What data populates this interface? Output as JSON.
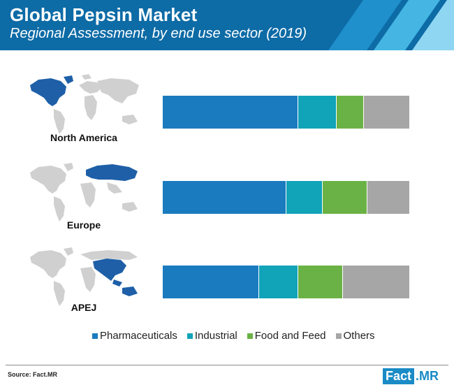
{
  "header": {
    "title": "Global Pepsin Market",
    "subtitle": "Regional Assessment, by end use sector (2019)",
    "bg_color": "#0d6ba6",
    "accent_colors": [
      "#1f90cc",
      "#45b6e3",
      "#8fd6f2"
    ]
  },
  "chart_data": {
    "type": "bar",
    "orientation": "horizontal-stacked-100",
    "title": "",
    "xlabel": "",
    "ylabel": "",
    "categories": [
      "North America",
      "Europe",
      "APEJ"
    ],
    "series": [
      {
        "name": "Pharmaceuticals",
        "color": "#1b7bbf",
        "values": [
          55,
          50,
          39
        ]
      },
      {
        "name": "Industrial",
        "color": "#11a3b8",
        "values": [
          15.5,
          15,
          16
        ]
      },
      {
        "name": "Food and Feed",
        "color": "#6ab245",
        "values": [
          11,
          18,
          18
        ]
      },
      {
        "name": "Others",
        "color": "#a6a6a6",
        "values": [
          18.5,
          17,
          27
        ]
      }
    ],
    "ylim": [
      0,
      100
    ],
    "grid": false,
    "legend_position": "bottom"
  },
  "regions": [
    {
      "label": "North America",
      "map_icon": "world-map-north-america-highlight"
    },
    {
      "label": "Europe",
      "map_icon": "world-map-russia-europe-highlight"
    },
    {
      "label": "APEJ",
      "map_icon": "world-map-asia-pacific-highlight"
    }
  ],
  "map_colors": {
    "land": "#d0d0d0",
    "highlight": "#1e5fa8"
  },
  "footer": {
    "source": "Source: Fact.MR",
    "logo_left": "Fact",
    "logo_right": ".MR"
  }
}
